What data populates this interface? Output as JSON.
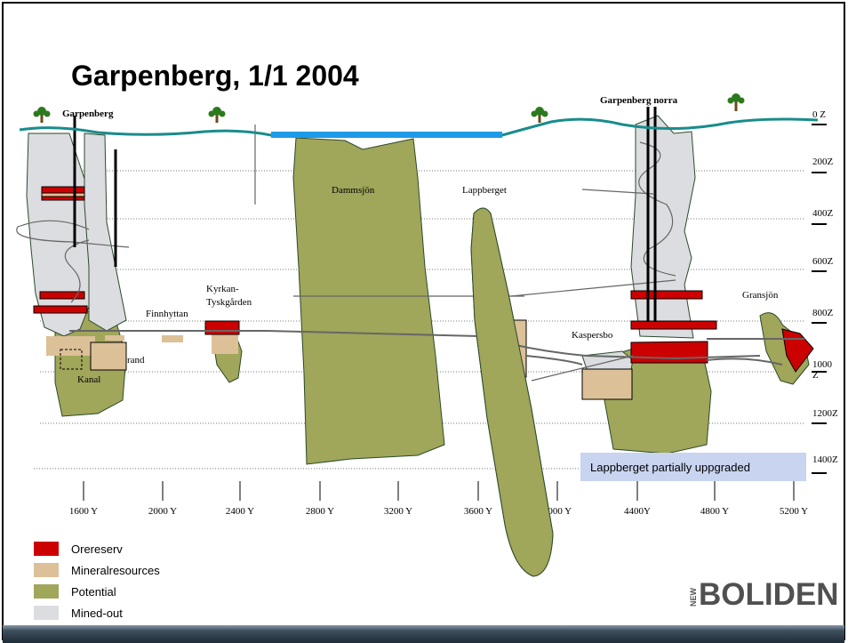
{
  "title": "Garpenberg, 1/1 2004",
  "mines": [
    "Garpenberg",
    "Garpenberg norra"
  ],
  "depth_labels": [
    "0 Z",
    "200Z",
    "400Z",
    "600Z",
    "800Z",
    "1000",
    "Z",
    "1200Z",
    "1400Z"
  ],
  "x_labels": [
    "1600 Y",
    "2000 Y",
    "2400 Y",
    "2800 Y",
    "3200 Y",
    "3600 Y",
    "4000 Y",
    "4400Y",
    "4800 Y",
    "5200 Y"
  ],
  "areas": [
    "Dammsjön",
    "Lappberget",
    "Kyrkan-",
    "Tyskgården",
    "Finnhyttan",
    "rand",
    "Kanal",
    "Kaspersbo",
    "Gransjön"
  ],
  "note": "Lappberget partially uppgraded",
  "legend": [
    "Orereserv",
    "Mineralresources",
    "Potential",
    "Mined-out"
  ],
  "logo": {
    "prefix": "NEW",
    "name": "BOLIDEN"
  }
}
